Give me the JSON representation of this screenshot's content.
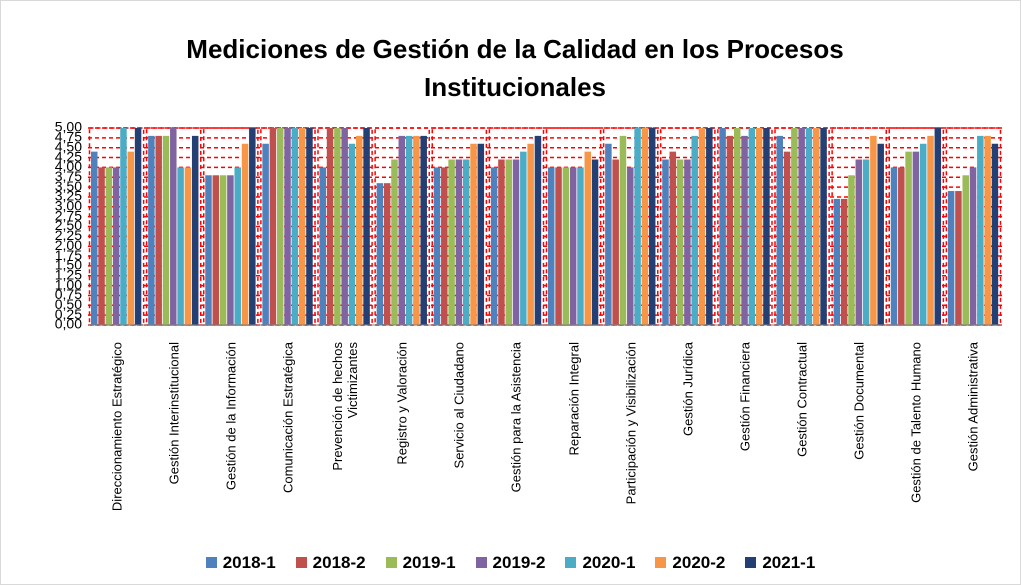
{
  "chart_data": {
    "type": "bar",
    "title": "Mediciones de Gestión de la Calidad en los Procesos Institucionales",
    "categories": [
      "Direccionamiento Estratégico",
      "Gestión Interinstitucional",
      "Gestión de la Información",
      "Comunicación Estratégica",
      "Prevención de hechos Victimizantes",
      "Registro y Valoración",
      "Servicio al Ciudadano",
      "Gestión para la Asistencia",
      "Reparación Integral",
      "Participación y Visibilización",
      "Gestión Jurídica",
      "Gestión Financiera",
      "Gestión Contractual",
      "Gestión Documental",
      "Gestión de Talento Humano",
      "Gestión Administrativa"
    ],
    "series": [
      {
        "name": "2018-1",
        "color": "#4f81bd",
        "values": [
          4.4,
          4.8,
          3.8,
          4.6,
          4.0,
          3.6,
          4.0,
          4.0,
          4.0,
          4.6,
          4.2,
          5.0,
          4.8,
          3.2,
          4.0,
          3.4
        ]
      },
      {
        "name": "2018-2",
        "color": "#c0504d",
        "values": [
          4.0,
          4.8,
          3.8,
          5.0,
          5.0,
          3.6,
          4.0,
          4.2,
          4.0,
          4.2,
          4.4,
          4.8,
          4.4,
          3.2,
          4.0,
          3.4
        ]
      },
      {
        "name": "2019-1",
        "color": "#9bbb59",
        "values": [
          4.0,
          4.8,
          3.8,
          5.0,
          5.0,
          4.2,
          4.2,
          4.2,
          4.0,
          4.8,
          4.2,
          5.0,
          5.0,
          3.8,
          4.4,
          3.8
        ]
      },
      {
        "name": "2019-2",
        "color": "#8064a2",
        "values": [
          4.0,
          5.0,
          3.8,
          5.0,
          5.0,
          4.8,
          4.2,
          4.2,
          4.0,
          4.0,
          4.2,
          4.8,
          5.0,
          4.2,
          4.4,
          4.0
        ]
      },
      {
        "name": "2020-1",
        "color": "#4bacc6",
        "values": [
          5.0,
          4.0,
          4.0,
          5.0,
          4.6,
          4.8,
          4.2,
          4.4,
          4.0,
          5.0,
          4.8,
          5.0,
          5.0,
          4.2,
          4.6,
          4.8
        ]
      },
      {
        "name": "2020-2",
        "color": "#f79646",
        "values": [
          4.4,
          4.0,
          4.6,
          5.0,
          4.8,
          4.8,
          4.6,
          4.6,
          4.4,
          5.0,
          5.0,
          5.0,
          5.0,
          4.8,
          4.8,
          4.8
        ]
      },
      {
        "name": "2021-1",
        "color": "#243f74",
        "values": [
          5.0,
          4.8,
          5.0,
          5.0,
          5.0,
          4.8,
          4.6,
          4.8,
          4.2,
          5.0,
          5.0,
          5.0,
          5.0,
          4.6,
          5.0,
          4.6
        ]
      }
    ],
    "ylim": [
      0,
      5
    ],
    "yticks": [
      {
        "value": 0,
        "label": "0,00"
      },
      {
        "value": 0.25,
        "label": "0,25"
      },
      {
        "value": 0.5,
        "label": "0,50"
      },
      {
        "value": 0.75,
        "label": "0,75"
      },
      {
        "value": 1,
        "label": "1,00"
      },
      {
        "value": 1.25,
        "label": "1,25"
      },
      {
        "value": 1.5,
        "label": "1,50"
      },
      {
        "value": 1.75,
        "label": "1,75"
      },
      {
        "value": 2,
        "label": "2,00"
      },
      {
        "value": 2.25,
        "label": "2,25"
      },
      {
        "value": 2.5,
        "label": "2,50"
      },
      {
        "value": 2.75,
        "label": "2,75"
      },
      {
        "value": 3,
        "label": "3,00"
      },
      {
        "value": 3.25,
        "label": "3,25"
      },
      {
        "value": 3.5,
        "label": "3,50"
      },
      {
        "value": 3.75,
        "label": "3,75"
      },
      {
        "value": 4,
        "label": "4,00"
      },
      {
        "value": 4.25,
        "label": "4,25"
      },
      {
        "value": 4.5,
        "label": "4,50"
      },
      {
        "value": 4.75,
        "label": "4,75"
      },
      {
        "value": 5,
        "label": "5,00"
      }
    ],
    "grid": true,
    "legend": "bottom"
  }
}
